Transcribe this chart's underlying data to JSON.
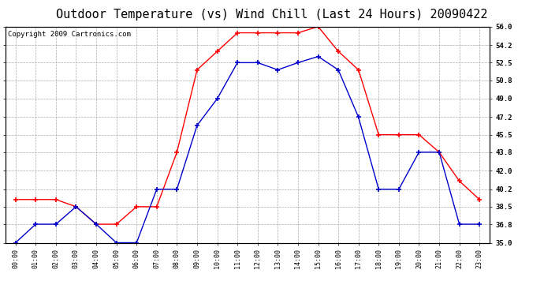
{
  "title": "Outdoor Temperature (vs) Wind Chill (Last 24 Hours) 20090422",
  "copyright": "Copyright 2009 Cartronics.com",
  "x_labels": [
    "00:00",
    "01:00",
    "02:00",
    "03:00",
    "04:00",
    "05:00",
    "06:00",
    "07:00",
    "08:00",
    "09:00",
    "10:00",
    "11:00",
    "12:00",
    "13:00",
    "14:00",
    "15:00",
    "16:00",
    "17:00",
    "18:00",
    "19:00",
    "20:00",
    "21:00",
    "22:00",
    "23:00"
  ],
  "temp_red": [
    39.2,
    39.2,
    39.2,
    38.5,
    36.8,
    36.8,
    38.5,
    38.5,
    43.8,
    51.8,
    53.6,
    55.4,
    55.4,
    55.4,
    55.4,
    56.0,
    53.6,
    51.8,
    45.5,
    45.5,
    45.5,
    43.8,
    41.0,
    39.2
  ],
  "wind_blue": [
    35.0,
    36.8,
    36.8,
    38.5,
    36.8,
    35.0,
    35.0,
    40.2,
    40.2,
    46.4,
    49.0,
    52.5,
    52.5,
    51.8,
    52.5,
    53.1,
    51.8,
    47.2,
    40.2,
    40.2,
    43.8,
    43.8,
    36.8,
    36.8
  ],
  "ylim_min": 35.0,
  "ylim_max": 56.0,
  "yticks": [
    35.0,
    36.8,
    38.5,
    40.2,
    42.0,
    43.8,
    45.5,
    47.2,
    49.0,
    50.8,
    52.5,
    54.2,
    56.0
  ],
  "red_color": "#ff0000",
  "blue_color": "#0000cc",
  "bg_color": "#ffffff",
  "grid_color": "#aaaaaa",
  "title_fontsize": 11,
  "copyright_fontsize": 6.5
}
